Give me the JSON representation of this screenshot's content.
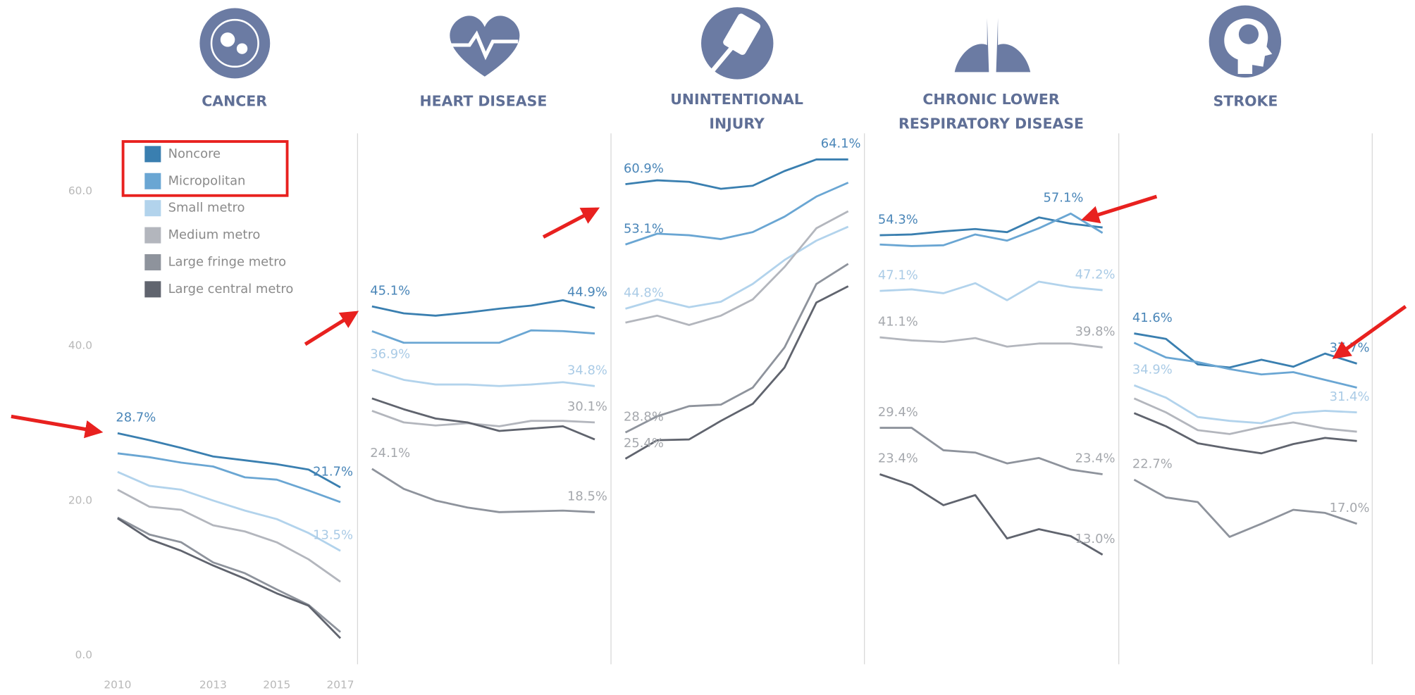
{
  "chart_data": {
    "type": "line",
    "x": [
      2010,
      2011,
      2012,
      2013,
      2014,
      2015,
      2016,
      2017
    ],
    "xlim": [
      2010,
      2017
    ],
    "xticks": [
      2010,
      2013,
      2015,
      2017
    ],
    "ylim": [
      0,
      67
    ],
    "yticks": [
      {
        "value": 0,
        "label": "0.0"
      },
      {
        "value": 20,
        "label": "20.0"
      },
      {
        "value": 40,
        "label": "40.0"
      },
      {
        "value": 60,
        "label": "60.0"
      }
    ],
    "series": [
      {
        "name": "Noncore",
        "color": "#3a7fb0"
      },
      {
        "name": "Micropolitan",
        "color": "#6aa6d3"
      },
      {
        "name": "Small metro",
        "color": "#b2d3ec"
      },
      {
        "name": "Medium metro",
        "color": "#b3b6bd"
      },
      {
        "name": "Large fringe metro",
        "color": "#8e939c"
      },
      {
        "name": "Large central metro",
        "color": "#60646e"
      }
    ],
    "panels": [
      {
        "title": [
          "CANCER"
        ],
        "series": [
          {
            "values": [
              28.7,
              27.8,
              26.8,
              25.7,
              25.2,
              24.7,
              24.0,
              21.7
            ],
            "value_labels": [
              "28.7%",
              null,
              null,
              null,
              null,
              null,
              null,
              "21.7%"
            ]
          },
          {
            "values": [
              26.1,
              25.6,
              24.9,
              24.4,
              23.0,
              22.7,
              21.3,
              19.8
            ]
          },
          {
            "values": [
              23.7,
              21.9,
              21.4,
              20.0,
              18.7,
              17.6,
              15.8,
              13.5
            ],
            "value_labels": [
              null,
              null,
              null,
              null,
              null,
              null,
              null,
              "13.5%"
            ]
          },
          {
            "values": [
              21.4,
              19.2,
              18.8,
              16.8,
              16.0,
              14.6,
              12.4,
              9.5
            ]
          },
          {
            "values": [
              17.8,
              15.6,
              14.6,
              12.0,
              10.6,
              8.5,
              6.5,
              3.0
            ]
          },
          {
            "values": [
              17.7,
              15.0,
              13.5,
              11.6,
              9.9,
              8.0,
              6.4,
              2.2
            ]
          }
        ]
      },
      {
        "title": [
          "HEART DISEASE"
        ],
        "series": [
          {
            "values": [
              45.1,
              44.2,
              43.9,
              44.3,
              44.8,
              45.2,
              45.9,
              44.9
            ],
            "value_labels": [
              "45.1%",
              null,
              null,
              null,
              null,
              null,
              null,
              "44.9%"
            ]
          },
          {
            "values": [
              41.9,
              40.4,
              40.4,
              40.4,
              40.4,
              42.0,
              41.9,
              41.6
            ]
          },
          {
            "values": [
              36.9,
              35.6,
              35.0,
              35.0,
              34.8,
              35.0,
              35.3,
              34.8
            ],
            "value_labels": [
              "36.9%",
              null,
              null,
              null,
              null,
              null,
              null,
              "34.8%"
            ]
          },
          {
            "values": [
              31.6,
              30.1,
              29.7,
              30.0,
              29.6,
              30.3,
              30.3,
              30.1
            ],
            "value_labels": [
              null,
              null,
              null,
              null,
              null,
              null,
              null,
              "30.1%"
            ]
          },
          {
            "values": [
              24.1,
              21.5,
              20.0,
              19.1,
              18.5,
              18.6,
              18.7,
              18.5
            ],
            "value_labels": [
              "24.1%",
              null,
              null,
              null,
              null,
              null,
              null,
              "18.5%"
            ]
          },
          {
            "values": [
              33.2,
              31.8,
              30.6,
              30.1,
              29.0,
              29.3,
              29.6,
              27.9
            ]
          }
        ]
      },
      {
        "title": [
          "UNINTENTIONAL",
          "INJURY"
        ],
        "series": [
          {
            "values": [
              60.9,
              61.4,
              61.2,
              60.3,
              60.7,
              62.6,
              64.1,
              64.1
            ],
            "value_labels": [
              "60.9%",
              null,
              null,
              null,
              null,
              null,
              null,
              "64.1%"
            ]
          },
          {
            "values": [
              53.1,
              54.5,
              54.3,
              53.8,
              54.7,
              56.7,
              59.3,
              61.1
            ],
            "value_labels": [
              "53.1%",
              null,
              null,
              null,
              null,
              null,
              null,
              null
            ]
          },
          {
            "values": [
              44.8,
              46.0,
              45.0,
              45.7,
              48.0,
              51.1,
              53.6,
              55.4
            ],
            "value_labels": [
              "44.8%",
              null,
              null,
              null,
              null,
              null,
              null,
              null
            ]
          },
          {
            "values": [
              43.0,
              43.9,
              42.7,
              43.9,
              46.0,
              50.2,
              55.2,
              57.4
            ]
          },
          {
            "values": [
              28.8,
              30.9,
              32.2,
              32.4,
              34.6,
              39.8,
              48.0,
              50.6
            ],
            "value_labels": [
              "28.8%",
              null,
              null,
              null,
              null,
              null,
              null,
              null
            ]
          },
          {
            "values": [
              25.4,
              27.8,
              27.9,
              30.3,
              32.5,
              37.2,
              45.6,
              47.7
            ],
            "value_labels": [
              "25.4%",
              null,
              null,
              null,
              null,
              null,
              null,
              null
            ]
          }
        ]
      },
      {
        "title": [
          "CHRONIC LOWER",
          "RESPIRATORY DISEASE"
        ],
        "series": [
          {
            "values": [
              54.3,
              54.4,
              54.8,
              55.1,
              54.7,
              56.6,
              55.8,
              55.3
            ],
            "value_labels": [
              "54.3%",
              null,
              null,
              null,
              null,
              null,
              null,
              null
            ]
          },
          {
            "values": [
              53.1,
              52.9,
              53.0,
              54.4,
              53.6,
              55.2,
              57.1,
              54.6
            ],
            "value_labels": [
              null,
              null,
              null,
              null,
              null,
              null,
              "57.1%",
              null
            ]
          },
          {
            "values": [
              47.1,
              47.3,
              46.8,
              48.1,
              45.9,
              48.3,
              47.6,
              47.2
            ],
            "value_labels": [
              "47.1%",
              null,
              null,
              null,
              null,
              null,
              null,
              "47.2%"
            ]
          },
          {
            "values": [
              41.1,
              40.7,
              40.5,
              41.0,
              39.9,
              40.3,
              40.3,
              39.8
            ],
            "value_labels": [
              "41.1%",
              null,
              null,
              null,
              null,
              null,
              null,
              "39.8%"
            ]
          },
          {
            "values": [
              29.4,
              29.4,
              26.5,
              26.2,
              24.8,
              25.5,
              24.0,
              23.4
            ],
            "value_labels": [
              "29.4%",
              null,
              null,
              null,
              null,
              null,
              null,
              "23.4%"
            ]
          },
          {
            "values": [
              23.4,
              22.0,
              19.4,
              20.7,
              15.1,
              16.3,
              15.4,
              13.0
            ],
            "value_labels": [
              "23.4%",
              null,
              null,
              null,
              null,
              null,
              null,
              "13.0%"
            ]
          }
        ]
      },
      {
        "title": [
          "STROKE"
        ],
        "series": [
          {
            "values": [
              41.6,
              40.9,
              37.6,
              37.2,
              38.2,
              37.3,
              39.0,
              37.7
            ],
            "value_labels": [
              "41.6%",
              null,
              null,
              null,
              null,
              null,
              null,
              "37.7%"
            ]
          },
          {
            "values": [
              40.4,
              38.5,
              37.9,
              37.0,
              36.3,
              36.6,
              35.6,
              34.6
            ]
          },
          {
            "values": [
              34.9,
              33.3,
              30.8,
              30.3,
              30.0,
              31.3,
              31.6,
              31.4
            ],
            "value_labels": [
              "34.9%",
              null,
              null,
              null,
              null,
              null,
              null,
              "31.4%"
            ]
          },
          {
            "values": [
              33.2,
              31.4,
              29.1,
              28.6,
              29.5,
              30.1,
              29.3,
              28.9
            ]
          },
          {
            "values": [
              22.7,
              20.4,
              19.8,
              15.3,
              17.0,
              18.8,
              18.4,
              17.0
            ],
            "value_labels": [
              "22.7%",
              null,
              null,
              null,
              null,
              null,
              null,
              "17.0%"
            ]
          },
          {
            "values": [
              31.3,
              29.6,
              27.4,
              26.7,
              26.1,
              27.3,
              28.1,
              27.7
            ]
          }
        ]
      }
    ]
  }
}
